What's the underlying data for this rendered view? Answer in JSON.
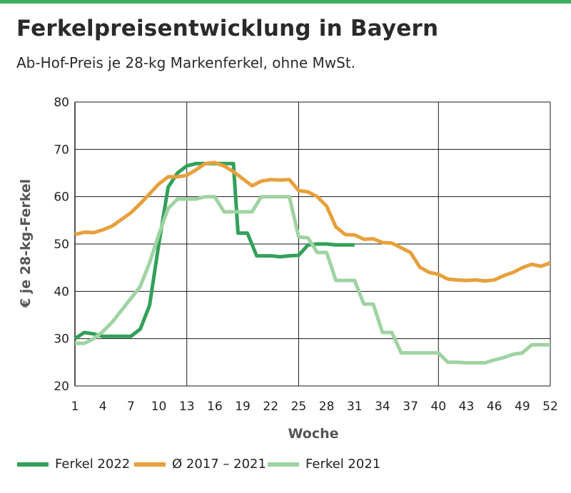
{
  "colors": {
    "accent_bar": "#3dae5f",
    "ferkel_2022": "#33a05a",
    "avg_2017_2021": "#e7a03c",
    "ferkel_2021": "#9fd3a2",
    "grid": "#1a1a1a"
  },
  "chart_data": {
    "type": "line",
    "title": "Ferkelpreisentwicklung in Bayern",
    "subtitle": "Ab-Hof-Preis je 28-kg Markenferkel, ohne MwSt.",
    "xlabel": "Woche",
    "ylabel": "€ je 28-kg-Ferkel",
    "xlim": [
      1,
      52
    ],
    "ylim": [
      20,
      80
    ],
    "xticks": [
      1,
      4,
      7,
      10,
      13,
      16,
      19,
      22,
      25,
      28,
      31,
      34,
      37,
      40,
      43,
      46,
      49,
      52
    ],
    "yticks": [
      20,
      30,
      40,
      50,
      60,
      70,
      80
    ],
    "grid": true,
    "legend_position": "bottom",
    "series": [
      {
        "name": "Ferkel 2022",
        "color_key": "ferkel_2022",
        "points": [
          [
            1,
            30
          ],
          [
            2,
            31.3
          ],
          [
            3,
            31
          ],
          [
            4,
            30.5
          ],
          [
            5,
            30.5
          ],
          [
            6,
            30.5
          ],
          [
            7,
            30.5
          ],
          [
            8,
            32
          ],
          [
            9,
            37
          ],
          [
            10,
            50
          ],
          [
            11,
            62
          ],
          [
            12,
            65
          ],
          [
            13,
            66.5
          ],
          [
            14,
            67
          ],
          [
            15,
            67
          ],
          [
            16,
            67
          ],
          [
            17,
            67
          ],
          [
            18,
            67
          ],
          [
            18.5,
            52.3
          ],
          [
            19.5,
            52.3
          ],
          [
            20.5,
            47.5
          ],
          [
            22,
            47.5
          ],
          [
            23,
            47.3
          ],
          [
            24,
            47.5
          ],
          [
            25,
            47.6
          ],
          [
            26,
            49.8
          ],
          [
            27,
            50
          ],
          [
            28,
            50
          ],
          [
            29,
            49.8
          ],
          [
            30,
            49.8
          ],
          [
            31,
            49.8
          ]
        ]
      },
      {
        "name": "Ø 2017 – 2021",
        "color_key": "avg_2017_2021",
        "points": [
          [
            1,
            52
          ],
          [
            2,
            52.5
          ],
          [
            3,
            52.4
          ],
          [
            4,
            53
          ],
          [
            5,
            53.8
          ],
          [
            6,
            55.2
          ],
          [
            7,
            56.6
          ],
          [
            8,
            58.5
          ],
          [
            9,
            60.6
          ],
          [
            10,
            62.7
          ],
          [
            11,
            64.2
          ],
          [
            12,
            64.2
          ],
          [
            13,
            64.5
          ],
          [
            14,
            65.7
          ],
          [
            15,
            67
          ],
          [
            16,
            67.2
          ],
          [
            17,
            66.5
          ],
          [
            18,
            65.3
          ],
          [
            19,
            63.8
          ],
          [
            20,
            62.3
          ],
          [
            21,
            63.3
          ],
          [
            22,
            63.6
          ],
          [
            23,
            63.5
          ],
          [
            24,
            63.6
          ],
          [
            25,
            61.3
          ],
          [
            26,
            61
          ],
          [
            27,
            60
          ],
          [
            28,
            58
          ],
          [
            29,
            53.6
          ],
          [
            30,
            52
          ],
          [
            31,
            51.9
          ],
          [
            32,
            51
          ],
          [
            33,
            51.1
          ],
          [
            34,
            50.3
          ],
          [
            35,
            50.2
          ],
          [
            36,
            49.2
          ],
          [
            37,
            48.2
          ],
          [
            38,
            45.1
          ],
          [
            39,
            44
          ],
          [
            40,
            43.6
          ],
          [
            41,
            42.6
          ],
          [
            42,
            42.4
          ],
          [
            43,
            42.3
          ],
          [
            44,
            42.4
          ],
          [
            45,
            42.2
          ],
          [
            46,
            42.4
          ],
          [
            47,
            43.3
          ],
          [
            48,
            44
          ],
          [
            49,
            45
          ],
          [
            50,
            45.7
          ],
          [
            51,
            45.3
          ],
          [
            52,
            46
          ]
        ]
      },
      {
        "name": "Ferkel 2021",
        "color_key": "ferkel_2021",
        "points": [
          [
            1,
            29
          ],
          [
            2,
            29
          ],
          [
            3,
            30
          ],
          [
            4,
            31.5
          ],
          [
            5,
            33.5
          ],
          [
            6,
            36
          ],
          [
            7,
            38.5
          ],
          [
            8,
            41
          ],
          [
            9,
            46
          ],
          [
            10,
            52
          ],
          [
            11,
            57.5
          ],
          [
            12,
            59.5
          ],
          [
            13,
            59.5
          ],
          [
            14,
            59.5
          ],
          [
            15,
            60
          ],
          [
            16,
            60
          ],
          [
            17,
            56.8
          ],
          [
            18,
            56.8
          ],
          [
            19,
            56.8
          ],
          [
            20,
            56.8
          ],
          [
            21,
            60
          ],
          [
            22,
            60
          ],
          [
            23,
            60
          ],
          [
            24,
            60
          ],
          [
            25,
            51.5
          ],
          [
            26,
            51.3
          ],
          [
            27,
            48.2
          ],
          [
            28,
            48.2
          ],
          [
            29,
            42.3
          ],
          [
            30,
            42.3
          ],
          [
            31,
            42.3
          ],
          [
            32,
            37.3
          ],
          [
            33,
            37.3
          ],
          [
            34,
            31.3
          ],
          [
            35,
            31.3
          ],
          [
            36,
            27
          ],
          [
            37,
            27
          ],
          [
            38,
            27
          ],
          [
            39,
            27
          ],
          [
            40,
            27
          ],
          [
            41,
            25
          ],
          [
            42,
            25
          ],
          [
            43,
            24.9
          ],
          [
            44,
            24.9
          ],
          [
            45,
            24.9
          ],
          [
            46,
            25.5
          ],
          [
            47,
            26
          ],
          [
            48,
            26.7
          ],
          [
            49,
            27
          ],
          [
            50,
            28.7
          ],
          [
            51,
            28.7
          ],
          [
            52,
            28.7
          ]
        ]
      }
    ]
  },
  "legend": [
    {
      "label": "Ferkel 2022",
      "color_key": "ferkel_2022"
    },
    {
      "label": "Ø 2017 – 2021",
      "color_key": "avg_2017_2021"
    },
    {
      "label": "Ferkel 2021",
      "color_key": "ferkel_2021"
    }
  ]
}
